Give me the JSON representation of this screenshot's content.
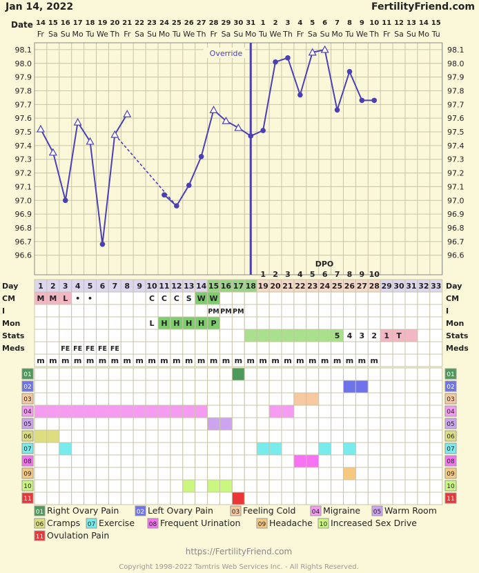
{
  "header": {
    "date": "Jan 14, 2022",
    "site": "FertilityFriend.com",
    "date_row_label": "Date",
    "override_label": "Override",
    "dpo_label": "DPO"
  },
  "dates": [
    "14",
    "15",
    "16",
    "17",
    "18",
    "19",
    "20",
    "21",
    "22",
    "23",
    "24",
    "25",
    "26",
    "27",
    "28",
    "29",
    "30",
    "31",
    "1",
    "2",
    "3",
    "4",
    "5",
    "6",
    "7",
    "8",
    "9",
    "10",
    "11",
    "12",
    "13",
    "14",
    "15"
  ],
  "weekdays": [
    "Fr",
    "Sa",
    "Su",
    "Mo",
    "Tu",
    "We",
    "Th",
    "Fr",
    "Sa",
    "Su",
    "Mo",
    "Tu",
    "We",
    "Th",
    "Fr",
    "Sa",
    "Su",
    "Mo",
    "Tu",
    "We",
    "Th",
    "Fr",
    "Sa",
    "Su",
    "Mo",
    "Tu",
    "We",
    "Th",
    "Fr",
    "Sa",
    "Su",
    "Mo",
    "Tu"
  ],
  "cycle_days": [
    "1",
    "2",
    "3",
    "4",
    "5",
    "6",
    "7",
    "8",
    "9",
    "10",
    "11",
    "12",
    "13",
    "14",
    "15",
    "16",
    "17",
    "18",
    "19",
    "20",
    "21",
    "22",
    "23",
    "24",
    "25",
    "26",
    "27",
    "28",
    "29",
    "30",
    "31",
    "32",
    "33"
  ],
  "dpo": [
    "",
    "",
    "",
    "",
    "",
    "",
    "",
    "",
    "",
    "",
    "",
    "",
    "",
    "",
    "",
    "",
    "",
    "",
    "1",
    "2",
    "3",
    "4",
    "5",
    "6",
    "7",
    "8",
    "9",
    "10",
    "",
    "",
    "",
    "",
    ""
  ],
  "chart_data": {
    "type": "line",
    "ylabel": "",
    "ylim": [
      96.6,
      98.1
    ],
    "yticks": [
      "96.6",
      "96.7",
      "96.8",
      "96.9",
      "97.0",
      "97.1",
      "97.2",
      "97.3",
      "97.4",
      "97.5",
      "97.6",
      "97.7",
      "97.8",
      "97.9",
      "98.0",
      "98.1"
    ],
    "x": [
      "1",
      "2",
      "3",
      "4",
      "5",
      "6",
      "7",
      "8",
      "9",
      "10",
      "11",
      "12",
      "13",
      "14",
      "15",
      "16",
      "17",
      "18",
      "19",
      "20",
      "21",
      "22",
      "23",
      "24",
      "25",
      "26",
      "27",
      "28"
    ],
    "series": [
      {
        "values": [
          97.52,
          97.35,
          97.0,
          97.57,
          97.43,
          96.68,
          97.48,
          97.63,
          null,
          null,
          97.04,
          96.96,
          97.11,
          97.32,
          97.66,
          97.58,
          97.53,
          97.47,
          97.51,
          98.01,
          98.04,
          97.77,
          98.08,
          98.1,
          97.66,
          97.94,
          97.73,
          97.73
        ]
      }
    ],
    "markers": [
      "tri",
      "tri",
      "dot",
      "tri",
      "tri",
      "dot",
      "tri",
      "tri",
      "",
      "",
      "dot",
      "dot",
      "dot",
      "dot",
      "tri",
      "tri",
      "tri",
      "dot",
      "dot",
      "dot",
      "dot",
      "dot",
      "tri",
      "tri",
      "dot",
      "dot",
      "dot",
      "dot"
    ],
    "dashed_gap": [
      8,
      11
    ],
    "coverline_day": 18
  },
  "row_labels": {
    "day": "Day",
    "cm": "CM",
    "i": "I",
    "mon": "Mon",
    "stats": "Stats",
    "meds": "Meds"
  },
  "cm_row": [
    "M",
    "M",
    "L",
    "•",
    "•",
    "",
    "",
    "",
    "",
    "C",
    "C",
    "C",
    "S",
    "W",
    "W",
    "",
    "",
    "",
    "",
    "",
    "",
    "",
    "",
    "",
    "",
    "",
    "",
    "",
    "",
    "",
    "",
    "",
    ""
  ],
  "i_row": [
    "",
    "",
    "",
    "",
    "",
    "",
    "",
    "",
    "",
    "",
    "",
    "",
    "",
    "",
    "PM",
    "PM",
    "PM",
    "",
    "",
    "",
    "",
    "",
    "",
    "",
    "",
    "",
    "",
    "",
    "",
    "",
    "",
    "",
    ""
  ],
  "mon_row": [
    "",
    "",
    "",
    "",
    "",
    "",
    "",
    "",
    "",
    "L",
    "H",
    "H",
    "H",
    "H",
    "P",
    "",
    "",
    "",
    "",
    "",
    "",
    "",
    "",
    "",
    "",
    "",
    "",
    "",
    "",
    "",
    "",
    "",
    ""
  ],
  "stats_row": [
    "",
    "",
    "",
    "",
    "",
    "",
    "",
    "",
    "",
    "",
    "",
    "",
    "",
    "",
    "",
    "",
    "",
    "",
    "",
    "",
    "",
    "",
    "",
    "",
    "5",
    "4",
    "3",
    "2",
    "1",
    "T",
    "",
    "",
    ""
  ],
  "meds_row": [
    "",
    "",
    "FE",
    "FE",
    "FE",
    "FE",
    "FE",
    "",
    "",
    "",
    "",
    "",
    "",
    "",
    "",
    "",
    "",
    "",
    "",
    "",
    "",
    "",
    "",
    "",
    "",
    "",
    "",
    "",
    "",
    "",
    "",
    "",
    ""
  ],
  "m_row": [
    "m",
    "m",
    "m",
    "m",
    "m",
    "m",
    "m",
    "m",
    "m",
    "m",
    "m",
    "m",
    "m",
    "m",
    "m",
    "m",
    "m",
    "m",
    "m",
    "m",
    "m",
    "m",
    "m",
    "m",
    "m",
    "m",
    "m",
    "m",
    "",
    "",
    "",
    "",
    ""
  ],
  "symptoms": [
    {
      "code": "01",
      "color": "#4c9a5a",
      "days": [
        17
      ]
    },
    {
      "code": "02",
      "color": "#6f73ea",
      "days": [
        26,
        27
      ]
    },
    {
      "code": "03",
      "color": "#f6c9a0",
      "days": [
        22,
        23
      ]
    },
    {
      "code": "04",
      "color": "#f59bf2",
      "days": [
        1,
        2,
        3,
        4,
        5,
        6,
        7,
        8,
        9,
        10,
        11,
        12,
        13,
        14,
        20,
        21
      ]
    },
    {
      "code": "05",
      "color": "#cda4ef",
      "days": [
        15,
        16
      ]
    },
    {
      "code": "06",
      "color": "#dede80",
      "days": [
        1,
        2
      ]
    },
    {
      "code": "07",
      "color": "#78ecec",
      "days": [
        3,
        19,
        20,
        24,
        26
      ]
    },
    {
      "code": "08",
      "color": "#f672f2",
      "days": [
        22,
        23
      ]
    },
    {
      "code": "09",
      "color": "#f7c980",
      "days": [
        26
      ]
    },
    {
      "code": "10",
      "color": "#c9f77f",
      "days": [
        13,
        15,
        16
      ]
    },
    {
      "code": "11",
      "color": "#ea3636",
      "days": [
        17
      ]
    }
  ],
  "legend": [
    {
      "code": "01",
      "label": "Right Ovary Pain"
    },
    {
      "code": "02",
      "label": "Left Ovary Pain"
    },
    {
      "code": "03",
      "label": "Feeling Cold"
    },
    {
      "code": "04",
      "label": "Migraine"
    },
    {
      "code": "05",
      "label": "Warm Room"
    },
    {
      "code": "06",
      "label": "Cramps"
    },
    {
      "code": "07",
      "label": "Exercise"
    },
    {
      "code": "08",
      "label": "Frequent Urination"
    },
    {
      "code": "09",
      "label": "Headache"
    },
    {
      "code": "10",
      "label": "Increased Sex Drive"
    },
    {
      "code": "11",
      "label": "Ovulation Pain"
    }
  ],
  "footer": {
    "url": "https://FertilityFriend.com",
    "copyright": "Copyright 1998-2022 Tamtris Web Services Inc. - All Rights Reserved."
  },
  "colors": {
    "line": "#4a3fb5",
    "bg": "#fbf7d9",
    "grid": "#c8c4a8",
    "follicular_day": "#dcd6ee",
    "fertile_day": "#9ad28a",
    "luteal_day": "#f5d9c8",
    "stats_green": "#a8e08c",
    "stats_pink": "#f2b6c4",
    "mon_green": "#7dcc6e"
  }
}
